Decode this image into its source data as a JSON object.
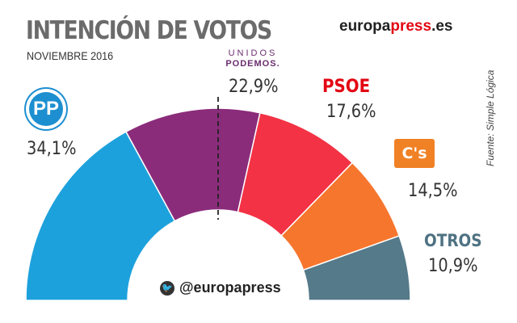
{
  "header": {
    "title": "INTENCIÓN DE VOTOS",
    "subtitle": "NOVIEMBRE 2016",
    "brand_a": "europa",
    "brand_b": "press",
    "brand_c": ".es",
    "source": "Fuente: Simple Lógica"
  },
  "logos": {
    "pp_text": "PP",
    "up_line1": "UNIDOS",
    "up_line2": "PODEMOS.",
    "psoe_text": "PSOE",
    "cs_text": "C's",
    "otros_text": "OTROS"
  },
  "footer": {
    "twitter_handle": "@europapress",
    "twitter_icon": "twitter-bird-icon"
  },
  "chart_data": {
    "type": "pie",
    "variant": "half-donut",
    "categories": [
      "PP",
      "Unidos Podemos",
      "PSOE",
      "C's",
      "Otros"
    ],
    "values": [
      34.1,
      22.9,
      17.6,
      14.5,
      10.9
    ],
    "labels": [
      "34,1%",
      "22,9%",
      "17,6%",
      "14,5%",
      "10,9%"
    ],
    "colors": [
      "#1da1dc",
      "#8b2c7b",
      "#f33245",
      "#f7762d",
      "#557a89"
    ],
    "majority_marker": true
  }
}
